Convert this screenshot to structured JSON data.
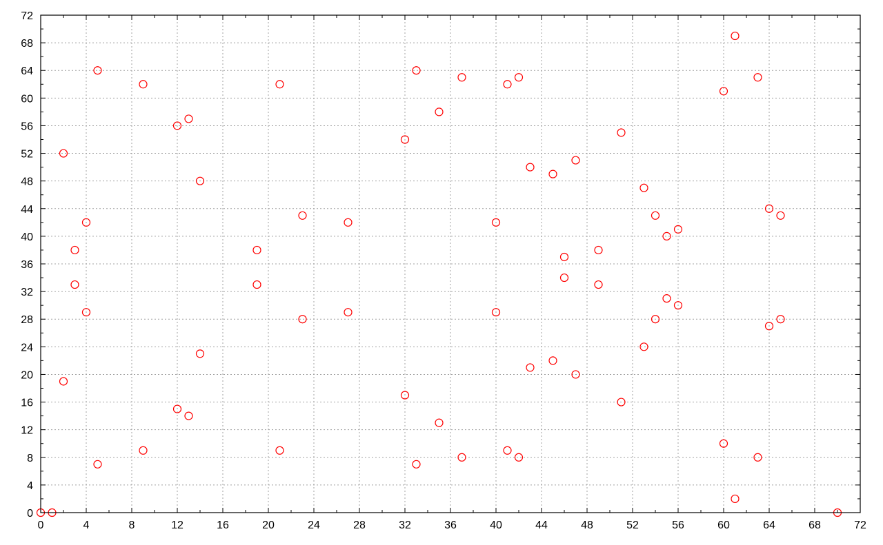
{
  "chart_data": {
    "type": "scatter",
    "title": "",
    "xlabel": "",
    "ylabel": "",
    "xlim": [
      0,
      72
    ],
    "ylim": [
      0,
      72
    ],
    "x_ticks": [
      0,
      4,
      8,
      12,
      16,
      20,
      24,
      28,
      32,
      36,
      40,
      44,
      48,
      52,
      56,
      60,
      64,
      68,
      72
    ],
    "y_ticks": [
      0,
      4,
      8,
      12,
      16,
      20,
      24,
      28,
      32,
      36,
      40,
      44,
      48,
      52,
      56,
      60,
      64,
      68,
      72
    ],
    "grid": true,
    "marker": "open-circle",
    "color": "#ff0000",
    "series": [
      {
        "points": [
          [
            0,
            0
          ],
          [
            1,
            0
          ],
          [
            70,
            0
          ],
          [
            2,
            52
          ],
          [
            2,
            19
          ],
          [
            3,
            38
          ],
          [
            3,
            33
          ],
          [
            4,
            42
          ],
          [
            4,
            29
          ],
          [
            5,
            64
          ],
          [
            5,
            7
          ],
          [
            9,
            62
          ],
          [
            9,
            9
          ],
          [
            12,
            56
          ],
          [
            12,
            15
          ],
          [
            13,
            57
          ],
          [
            13,
            14
          ],
          [
            14,
            48
          ],
          [
            14,
            23
          ],
          [
            19,
            38
          ],
          [
            19,
            33
          ],
          [
            21,
            62
          ],
          [
            21,
            9
          ],
          [
            23,
            43
          ],
          [
            23,
            28
          ],
          [
            27,
            42
          ],
          [
            27,
            29
          ],
          [
            32,
            54
          ],
          [
            32,
            17
          ],
          [
            33,
            64
          ],
          [
            33,
            7
          ],
          [
            35,
            58
          ],
          [
            35,
            13
          ],
          [
            37,
            63
          ],
          [
            37,
            8
          ],
          [
            40,
            42
          ],
          [
            40,
            29
          ],
          [
            41,
            62
          ],
          [
            41,
            9
          ],
          [
            42,
            63
          ],
          [
            42,
            8
          ],
          [
            43,
            50
          ],
          [
            43,
            21
          ],
          [
            45,
            49
          ],
          [
            45,
            22
          ],
          [
            46,
            37
          ],
          [
            46,
            34
          ],
          [
            47,
            51
          ],
          [
            47,
            20
          ],
          [
            49,
            38
          ],
          [
            49,
            33
          ],
          [
            51,
            55
          ],
          [
            51,
            16
          ],
          [
            53,
            47
          ],
          [
            53,
            24
          ],
          [
            54,
            43
          ],
          [
            54,
            28
          ],
          [
            55,
            40
          ],
          [
            55,
            31
          ],
          [
            56,
            41
          ],
          [
            56,
            30
          ],
          [
            60,
            61
          ],
          [
            60,
            10
          ],
          [
            61,
            69
          ],
          [
            61,
            2
          ],
          [
            63,
            63
          ],
          [
            63,
            8
          ],
          [
            64,
            44
          ],
          [
            64,
            27
          ],
          [
            65,
            43
          ],
          [
            65,
            28
          ]
        ]
      }
    ]
  }
}
